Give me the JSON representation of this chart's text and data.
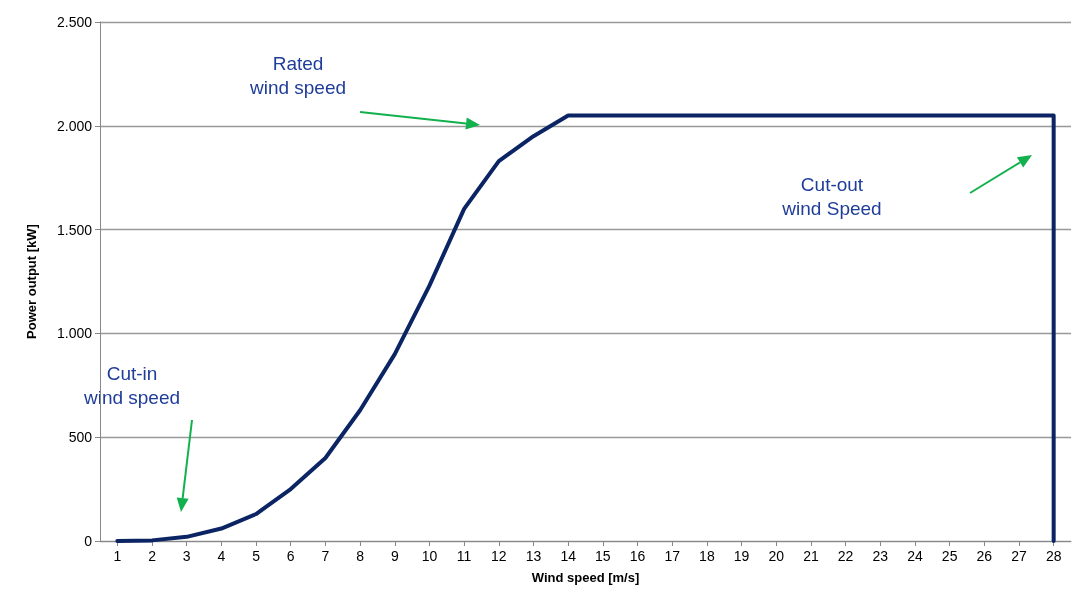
{
  "chart_data": {
    "type": "line",
    "xlabel": "Wind speed [m/s]",
    "ylabel": "Power output [kW]",
    "x": [
      1,
      2,
      3,
      4,
      5,
      6,
      7,
      8,
      9,
      10,
      11,
      12,
      13,
      14,
      15,
      16,
      17,
      18,
      19,
      20,
      21,
      22,
      23,
      24,
      25,
      26,
      27,
      28,
      28
    ],
    "series": [
      {
        "color": "#0b2463",
        "values": [
          0,
          3,
          20,
          60,
          130,
          250,
          400,
          630,
          900,
          1230,
          1600,
          1830,
          1950,
          2050,
          2050,
          2050,
          2050,
          2050,
          2050,
          2050,
          2050,
          2050,
          2050,
          2050,
          2050,
          2050,
          2050,
          2050,
          0
        ]
      }
    ],
    "xlim": [
      0.5,
      28.5
    ],
    "xticks": [
      1,
      2,
      3,
      4,
      5,
      6,
      7,
      8,
      9,
      10,
      11,
      12,
      13,
      14,
      15,
      16,
      17,
      18,
      19,
      20,
      21,
      22,
      23,
      24,
      25,
      26,
      27,
      28
    ],
    "ylim": [
      0,
      2500
    ],
    "yticks": [
      0,
      500,
      {
        "value": 1000,
        "label": "1.000"
      },
      {
        "value": 1500,
        "label": "1.500"
      },
      {
        "value": 2000,
        "label": "2.000"
      },
      {
        "value": 2500,
        "label": "2.500"
      }
    ],
    "grid": "y",
    "marker": "none",
    "line_style": "solid",
    "annotations": [
      "Cut-in\nwind speed",
      "Rated\nwind speed",
      "Cut-out\nwind Speed"
    ]
  }
}
